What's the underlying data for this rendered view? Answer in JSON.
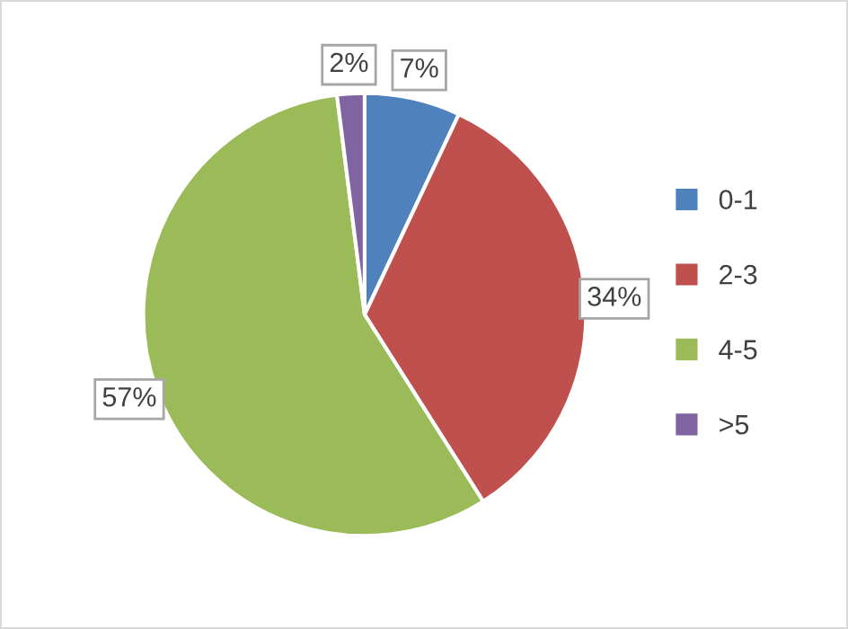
{
  "chart_data": {
    "type": "pie",
    "categories": [
      "0-1",
      "2-3",
      "4-5",
      ">5"
    ],
    "values": [
      7,
      34,
      57,
      2
    ],
    "colors": [
      "#4f81bd",
      "#c0504d",
      "#9bbb59",
      "#8064a2"
    ],
    "value_labels": [
      "7%",
      "34%",
      "57%",
      "2%"
    ],
    "legend": "right"
  }
}
